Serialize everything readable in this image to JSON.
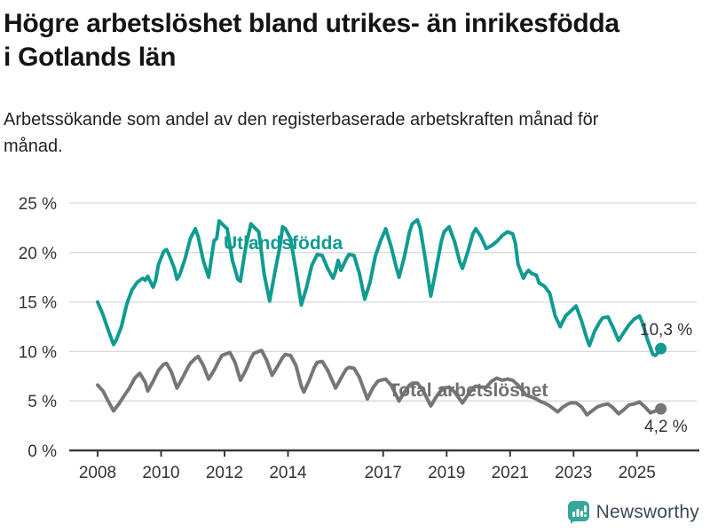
{
  "header": {
    "title": "Högre arbetslöshet bland utrikes- än inrikesfödda i Gotlands län",
    "subtitle": "Arbetssökande som andel av den registerbaserade arbetskraften månad för månad."
  },
  "footer": {
    "brand": "Newsworthy"
  },
  "colors": {
    "accent_teal": "#109b91",
    "series_gray": "#767676",
    "grid": "#d9d9d9",
    "axis": "#3a3a3a",
    "tick_text": "#333333",
    "value_label_text": "#333333",
    "logo_icon": "#35a79b",
    "logo_text": "#3d4a59"
  },
  "chart_data": {
    "type": "line",
    "title": "Högre arbetslöshet bland utrikes- än inrikesfödda i Gotlands län",
    "xlabel": "",
    "ylabel": "",
    "x_unit": "decimal_year",
    "xlim": [
      2007.1,
      2026.2
    ],
    "ylim": [
      0,
      25
    ],
    "grid": "horizontal",
    "x_ticks": [
      2008,
      2010,
      2012,
      2014,
      2017,
      2019,
      2021,
      2023,
      2025
    ],
    "y_ticks": [
      0,
      5,
      10,
      15,
      20,
      25
    ],
    "y_tick_suffix": " %",
    "legend_position": "inline-labels",
    "series": [
      {
        "name": "Utlandsfödda",
        "color": "#109b91",
        "end_label": "10,3 %",
        "end_value": 10.3,
        "points": [
          [
            2008.0,
            15.0
          ],
          [
            2008.17,
            13.7
          ],
          [
            2008.33,
            12.2
          ],
          [
            2008.5,
            10.7
          ],
          [
            2008.58,
            11.1
          ],
          [
            2008.75,
            12.5
          ],
          [
            2008.92,
            14.8
          ],
          [
            2009.08,
            16.2
          ],
          [
            2009.25,
            17.0
          ],
          [
            2009.42,
            17.4
          ],
          [
            2009.5,
            17.2
          ],
          [
            2009.58,
            17.6
          ],
          [
            2009.67,
            17.0
          ],
          [
            2009.75,
            16.5
          ],
          [
            2009.83,
            17.2
          ],
          [
            2009.92,
            18.8
          ],
          [
            2010.08,
            20.1
          ],
          [
            2010.17,
            20.3
          ],
          [
            2010.25,
            19.8
          ],
          [
            2010.42,
            18.4
          ],
          [
            2010.5,
            17.3
          ],
          [
            2010.58,
            17.7
          ],
          [
            2010.75,
            19.3
          ],
          [
            2010.92,
            21.4
          ],
          [
            2011.08,
            22.4
          ],
          [
            2011.17,
            21.6
          ],
          [
            2011.33,
            19.2
          ],
          [
            2011.5,
            17.5
          ],
          [
            2011.58,
            19.3
          ],
          [
            2011.67,
            21.2
          ],
          [
            2011.75,
            21.4
          ],
          [
            2011.83,
            23.2
          ],
          [
            2011.92,
            22.9
          ],
          [
            2012.08,
            22.4
          ],
          [
            2012.25,
            19.2
          ],
          [
            2012.42,
            17.3
          ],
          [
            2012.5,
            17.1
          ],
          [
            2012.58,
            18.8
          ],
          [
            2012.67,
            20.6
          ],
          [
            2012.83,
            22.9
          ],
          [
            2012.92,
            22.6
          ],
          [
            2013.08,
            22.1
          ],
          [
            2013.25,
            17.8
          ],
          [
            2013.42,
            15.1
          ],
          [
            2013.58,
            17.9
          ],
          [
            2013.75,
            20.7
          ],
          [
            2013.83,
            22.6
          ],
          [
            2013.92,
            22.4
          ],
          [
            2014.08,
            21.4
          ],
          [
            2014.25,
            18.2
          ],
          [
            2014.42,
            14.7
          ],
          [
            2014.58,
            16.4
          ],
          [
            2014.75,
            18.7
          ],
          [
            2014.92,
            19.8
          ],
          [
            2015.08,
            19.7
          ],
          [
            2015.25,
            18.4
          ],
          [
            2015.42,
            17.4
          ],
          [
            2015.5,
            18.1
          ],
          [
            2015.58,
            19.2
          ],
          [
            2015.67,
            18.2
          ],
          [
            2015.83,
            19.3
          ],
          [
            2015.92,
            19.8
          ],
          [
            2016.08,
            19.7
          ],
          [
            2016.25,
            17.9
          ],
          [
            2016.42,
            15.3
          ],
          [
            2016.58,
            16.9
          ],
          [
            2016.75,
            19.6
          ],
          [
            2016.92,
            21.2
          ],
          [
            2017.08,
            22.4
          ],
          [
            2017.25,
            20.6
          ],
          [
            2017.42,
            18.4
          ],
          [
            2017.5,
            17.5
          ],
          [
            2017.67,
            19.6
          ],
          [
            2017.83,
            22.1
          ],
          [
            2017.92,
            22.9
          ],
          [
            2018.08,
            23.3
          ],
          [
            2018.17,
            22.4
          ],
          [
            2018.33,
            19.3
          ],
          [
            2018.5,
            15.6
          ],
          [
            2018.67,
            18.4
          ],
          [
            2018.83,
            21.1
          ],
          [
            2018.92,
            22.1
          ],
          [
            2019.08,
            22.6
          ],
          [
            2019.25,
            21.1
          ],
          [
            2019.42,
            19.0
          ],
          [
            2019.5,
            18.4
          ],
          [
            2019.67,
            20.1
          ],
          [
            2019.83,
            21.9
          ],
          [
            2019.92,
            22.4
          ],
          [
            2020.08,
            21.6
          ],
          [
            2020.25,
            20.4
          ],
          [
            2020.42,
            20.7
          ],
          [
            2020.58,
            21.1
          ],
          [
            2020.75,
            21.7
          ],
          [
            2020.92,
            22.1
          ],
          [
            2021.08,
            21.9
          ],
          [
            2021.17,
            20.9
          ],
          [
            2021.25,
            18.8
          ],
          [
            2021.42,
            17.4
          ],
          [
            2021.5,
            17.9
          ],
          [
            2021.58,
            18.2
          ],
          [
            2021.67,
            17.9
          ],
          [
            2021.83,
            17.7
          ],
          [
            2021.92,
            16.9
          ],
          [
            2022.08,
            16.6
          ],
          [
            2022.25,
            15.9
          ],
          [
            2022.42,
            13.6
          ],
          [
            2022.58,
            12.5
          ],
          [
            2022.75,
            13.6
          ],
          [
            2022.92,
            14.1
          ],
          [
            2023.08,
            14.6
          ],
          [
            2023.25,
            13.1
          ],
          [
            2023.42,
            11.3
          ],
          [
            2023.5,
            10.6
          ],
          [
            2023.67,
            12.1
          ],
          [
            2023.83,
            13.0
          ],
          [
            2023.92,
            13.4
          ],
          [
            2024.08,
            13.5
          ],
          [
            2024.25,
            12.4
          ],
          [
            2024.42,
            11.1
          ],
          [
            2024.58,
            11.9
          ],
          [
            2024.75,
            12.7
          ],
          [
            2024.92,
            13.3
          ],
          [
            2025.08,
            13.6
          ],
          [
            2025.17,
            12.9
          ],
          [
            2025.33,
            11.2
          ],
          [
            2025.5,
            9.7
          ],
          [
            2025.58,
            9.6
          ],
          [
            2025.67,
            9.9
          ],
          [
            2025.75,
            10.3
          ]
        ]
      },
      {
        "name": "Total arbetslöshet",
        "color": "#767676",
        "end_label": "4,2 %",
        "end_value": 4.2,
        "points": [
          [
            2008.0,
            6.6
          ],
          [
            2008.17,
            6.0
          ],
          [
            2008.33,
            5.0
          ],
          [
            2008.5,
            4.0
          ],
          [
            2008.67,
            4.7
          ],
          [
            2008.83,
            5.5
          ],
          [
            2009.0,
            6.3
          ],
          [
            2009.17,
            7.3
          ],
          [
            2009.33,
            7.8
          ],
          [
            2009.5,
            6.9
          ],
          [
            2009.58,
            6.0
          ],
          [
            2009.75,
            7.0
          ],
          [
            2009.92,
            8.1
          ],
          [
            2010.08,
            8.7
          ],
          [
            2010.17,
            8.8
          ],
          [
            2010.33,
            7.9
          ],
          [
            2010.5,
            6.3
          ],
          [
            2010.67,
            7.3
          ],
          [
            2010.83,
            8.3
          ],
          [
            2010.92,
            8.8
          ],
          [
            2011.08,
            9.3
          ],
          [
            2011.17,
            9.5
          ],
          [
            2011.33,
            8.6
          ],
          [
            2011.5,
            7.2
          ],
          [
            2011.67,
            8.1
          ],
          [
            2011.83,
            9.1
          ],
          [
            2011.92,
            9.6
          ],
          [
            2012.08,
            9.8
          ],
          [
            2012.17,
            9.9
          ],
          [
            2012.33,
            8.9
          ],
          [
            2012.5,
            7.1
          ],
          [
            2012.67,
            8.1
          ],
          [
            2012.83,
            9.3
          ],
          [
            2012.92,
            9.8
          ],
          [
            2013.08,
            10.0
          ],
          [
            2013.17,
            10.1
          ],
          [
            2013.33,
            9.1
          ],
          [
            2013.5,
            7.6
          ],
          [
            2013.67,
            8.5
          ],
          [
            2013.83,
            9.4
          ],
          [
            2013.92,
            9.7
          ],
          [
            2014.08,
            9.6
          ],
          [
            2014.25,
            8.6
          ],
          [
            2014.42,
            6.5
          ],
          [
            2014.5,
            5.9
          ],
          [
            2014.67,
            7.1
          ],
          [
            2014.83,
            8.4
          ],
          [
            2014.92,
            8.9
          ],
          [
            2015.08,
            9.0
          ],
          [
            2015.25,
            8.1
          ],
          [
            2015.5,
            6.3
          ],
          [
            2015.67,
            7.3
          ],
          [
            2015.83,
            8.2
          ],
          [
            2015.92,
            8.4
          ],
          [
            2016.08,
            8.3
          ],
          [
            2016.25,
            7.4
          ],
          [
            2016.5,
            5.2
          ],
          [
            2016.67,
            6.3
          ],
          [
            2016.83,
            7.0
          ],
          [
            2016.92,
            7.1
          ],
          [
            2017.08,
            7.2
          ],
          [
            2017.25,
            6.6
          ],
          [
            2017.5,
            5.0
          ],
          [
            2017.67,
            5.9
          ],
          [
            2017.83,
            6.6
          ],
          [
            2017.92,
            6.8
          ],
          [
            2018.08,
            6.8
          ],
          [
            2018.25,
            6.1
          ],
          [
            2018.5,
            4.5
          ],
          [
            2018.67,
            5.4
          ],
          [
            2018.83,
            6.1
          ],
          [
            2018.92,
            6.3
          ],
          [
            2019.08,
            6.4
          ],
          [
            2019.25,
            5.9
          ],
          [
            2019.5,
            4.8
          ],
          [
            2019.67,
            5.6
          ],
          [
            2019.83,
            6.3
          ],
          [
            2019.92,
            6.5
          ],
          [
            2020.08,
            6.4
          ],
          [
            2020.25,
            6.4
          ],
          [
            2020.42,
            7.0
          ],
          [
            2020.58,
            7.3
          ],
          [
            2020.75,
            7.1
          ],
          [
            2020.92,
            7.2
          ],
          [
            2021.08,
            7.1
          ],
          [
            2021.25,
            6.6
          ],
          [
            2021.5,
            5.6
          ],
          [
            2021.67,
            5.4
          ],
          [
            2021.83,
            5.2
          ],
          [
            2021.92,
            5.0
          ],
          [
            2022.08,
            4.8
          ],
          [
            2022.25,
            4.5
          ],
          [
            2022.5,
            3.9
          ],
          [
            2022.67,
            4.4
          ],
          [
            2022.83,
            4.7
          ],
          [
            2022.92,
            4.8
          ],
          [
            2023.08,
            4.8
          ],
          [
            2023.25,
            4.4
          ],
          [
            2023.42,
            3.6
          ],
          [
            2023.58,
            4.0
          ],
          [
            2023.75,
            4.4
          ],
          [
            2023.92,
            4.6
          ],
          [
            2024.08,
            4.7
          ],
          [
            2024.25,
            4.3
          ],
          [
            2024.42,
            3.7
          ],
          [
            2024.58,
            4.1
          ],
          [
            2024.75,
            4.6
          ],
          [
            2024.92,
            4.7
          ],
          [
            2025.08,
            4.9
          ],
          [
            2025.25,
            4.4
          ],
          [
            2025.42,
            3.8
          ],
          [
            2025.58,
            4.0
          ],
          [
            2025.75,
            4.2
          ]
        ]
      }
    ]
  }
}
